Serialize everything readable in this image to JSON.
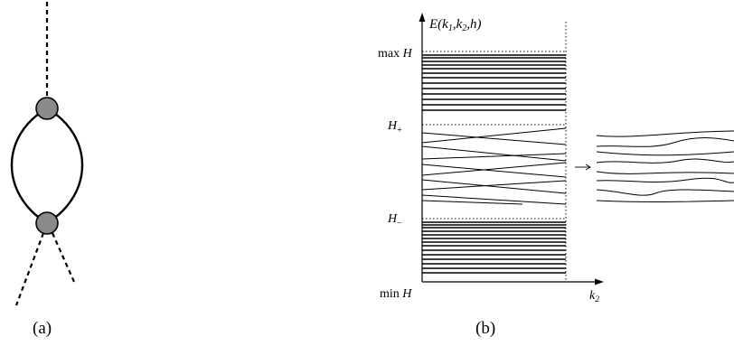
{
  "panel_a": {
    "caption": "(a)"
  },
  "panel_b": {
    "caption": "(b)",
    "y_axis_label": {
      "base": "E(k",
      "sub1": "1",
      "mid": ",k",
      "sub2": "2",
      "tail": ",h)"
    },
    "x_axis_label": {
      "base": "k",
      "sub": "2"
    },
    "level_labels": {
      "max": {
        "pre": "max ",
        "var": "H"
      },
      "plus": {
        "var": "H",
        "sub": "+"
      },
      "minus": {
        "var": "H",
        "sub": "−"
      },
      "min": {
        "pre": "min ",
        "var": "H"
      }
    },
    "arrow_glyph": "→"
  }
}
